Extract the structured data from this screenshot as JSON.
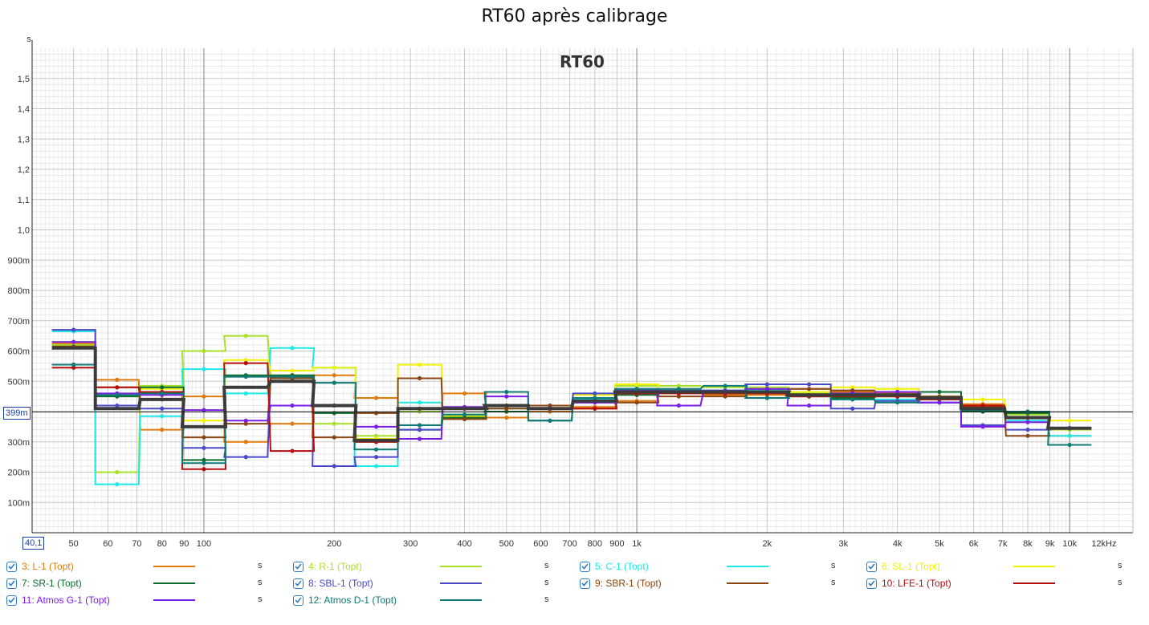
{
  "window": {
    "title": "RT60 après calibrage"
  },
  "cursor": {
    "freq_label": "40,1",
    "value_label": "399m",
    "value": 0.399
  },
  "chart_data": {
    "type": "line",
    "step": true,
    "title": "RT60 après calibrage",
    "watermark": "RT60",
    "yunit": "s",
    "xunit": "kHz",
    "xscale": "log",
    "xlim": [
      40.1,
      14000
    ],
    "ylim": [
      0,
      1.6
    ],
    "grid": true,
    "y_ticks": [
      {
        "v": 0.1,
        "l": "100m"
      },
      {
        "v": 0.2,
        "l": "200m"
      },
      {
        "v": 0.3,
        "l": "300m"
      },
      {
        "v": 0.4,
        "l": "400m"
      },
      {
        "v": 0.5,
        "l": "500m"
      },
      {
        "v": 0.6,
        "l": "600m"
      },
      {
        "v": 0.7,
        "l": "700m"
      },
      {
        "v": 0.8,
        "l": "800m"
      },
      {
        "v": 0.9,
        "l": "900m"
      },
      {
        "v": 1.0,
        "l": "1,0"
      },
      {
        "v": 1.1,
        "l": "1,1"
      },
      {
        "v": 1.2,
        "l": "1,2"
      },
      {
        "v": 1.3,
        "l": "1,3"
      },
      {
        "v": 1.4,
        "l": "1,4"
      },
      {
        "v": 1.5,
        "l": "1,5"
      }
    ],
    "x_ticks": [
      {
        "v": 50,
        "l": "50"
      },
      {
        "v": 60,
        "l": "60"
      },
      {
        "v": 70,
        "l": "70"
      },
      {
        "v": 80,
        "l": "80"
      },
      {
        "v": 90,
        "l": "90"
      },
      {
        "v": 100,
        "l": "100"
      },
      {
        "v": 200,
        "l": "200"
      },
      {
        "v": 300,
        "l": "300"
      },
      {
        "v": 400,
        "l": "400"
      },
      {
        "v": 500,
        "l": "500"
      },
      {
        "v": 600,
        "l": "600"
      },
      {
        "v": 700,
        "l": "700"
      },
      {
        "v": 800,
        "l": "800"
      },
      {
        "v": 900,
        "l": "900"
      },
      {
        "v": 1000,
        "l": "1k"
      },
      {
        "v": 2000,
        "l": "2k"
      },
      {
        "v": 3000,
        "l": "3k"
      },
      {
        "v": 4000,
        "l": "4k"
      },
      {
        "v": 5000,
        "l": "5k"
      },
      {
        "v": 6000,
        "l": "6k"
      },
      {
        "v": 7000,
        "l": "7k"
      },
      {
        "v": 8000,
        "l": "8k"
      },
      {
        "v": 9000,
        "l": "9k"
      },
      {
        "v": 10000,
        "l": "10k"
      },
      {
        "v": 12000,
        "l": "12kHz"
      }
    ],
    "bands": [
      50,
      63,
      80,
      100,
      125,
      160,
      200,
      250,
      315,
      400,
      500,
      630,
      800,
      1000,
      1250,
      1600,
      2000,
      2500,
      3150,
      4000,
      5000,
      6300,
      8000,
      10000
    ],
    "series": [
      {
        "name": "3: L-1 (Topt)",
        "color": "#e07b0e",
        "values": [
          0.625,
          0.505,
          0.34,
          0.45,
          0.3,
          0.36,
          0.52,
          0.445,
          0.355,
          0.46,
          0.38,
          0.4,
          0.415,
          0.435,
          0.465,
          0.455,
          0.455,
          0.475,
          0.465,
          0.46,
          0.44,
          0.425,
          0.4,
          0.32
        ]
      },
      {
        "name": "4: R-1 (Topt)",
        "color": "#a8e02a",
        "values": [
          0.62,
          0.2,
          0.485,
          0.6,
          0.65,
          0.52,
          0.36,
          0.32,
          0.4,
          0.39,
          0.4,
          0.41,
          0.445,
          0.485,
          0.485,
          0.48,
          0.48,
          0.46,
          0.46,
          0.45,
          0.45,
          0.41,
          0.39,
          0.34
        ]
      },
      {
        "name": "5: C-1 (Topt)",
        "color": "#1ee8e8",
        "values": [
          0.665,
          0.16,
          0.385,
          0.54,
          0.46,
          0.61,
          0.545,
          0.22,
          0.43,
          0.39,
          0.41,
          0.42,
          0.44,
          0.46,
          0.465,
          0.47,
          0.47,
          0.455,
          0.44,
          0.44,
          0.43,
          0.4,
          0.37,
          0.32
        ]
      },
      {
        "name": "6: SL-1 (Topt)",
        "color": "#f2f200",
        "values": [
          0.63,
          0.455,
          0.475,
          0.37,
          0.57,
          0.535,
          0.545,
          0.31,
          0.555,
          0.385,
          0.4,
          0.41,
          0.455,
          0.49,
          0.475,
          0.46,
          0.465,
          0.465,
          0.48,
          0.475,
          0.45,
          0.44,
          0.38,
          0.37
        ]
      },
      {
        "name": "7: SR-1 (Topt)",
        "color": "#0e6b2e",
        "values": [
          0.555,
          0.45,
          0.48,
          0.24,
          0.52,
          0.52,
          0.395,
          0.3,
          0.34,
          0.38,
          0.4,
          0.37,
          0.43,
          0.455,
          0.465,
          0.465,
          0.445,
          0.45,
          0.445,
          0.45,
          0.465,
          0.4,
          0.395,
          0.345
        ]
      },
      {
        "name": "8: SBL-1 (Topt)",
        "color": "#4a4ac8",
        "values": [
          0.67,
          0.42,
          0.41,
          0.28,
          0.25,
          0.515,
          0.22,
          0.25,
          0.34,
          0.41,
          0.42,
          0.42,
          0.46,
          0.475,
          0.47,
          0.47,
          0.49,
          0.49,
          0.41,
          0.435,
          0.43,
          0.355,
          0.34,
          0.345
        ]
      },
      {
        "name": "9: SBR-1 (Topt)",
        "color": "#8b4510",
        "values": [
          0.615,
          0.48,
          0.44,
          0.315,
          0.36,
          0.51,
          0.315,
          0.395,
          0.51,
          0.375,
          0.41,
          0.42,
          0.41,
          0.43,
          0.45,
          0.45,
          0.475,
          0.475,
          0.47,
          0.465,
          0.45,
          0.415,
          0.32,
          0.345
        ]
      },
      {
        "name": "10: LFE-1 (Topt)",
        "color": "#b80e0e",
        "values": [
          0.545,
          0.48,
          0.465,
          0.21,
          0.56,
          0.27,
          0.42,
          0.3,
          0.41,
          0.41,
          0.42,
          0.41,
          0.41,
          0.46,
          0.46,
          0.46,
          0.46,
          0.45,
          0.45,
          0.45,
          0.44,
          0.42,
          0.38,
          0.345
        ]
      },
      {
        "name": "11: Atmos G-1 (Topt)",
        "color": "#7a1ee6",
        "values": [
          0.63,
          0.46,
          0.455,
          0.405,
          0.37,
          0.42,
          0.42,
          0.35,
          0.31,
          0.415,
          0.45,
          0.41,
          0.43,
          0.47,
          0.42,
          0.465,
          0.475,
          0.42,
          0.46,
          0.465,
          0.43,
          0.35,
          0.365,
          0.345
        ]
      },
      {
        "name": "12: Atmos D-1 (Topt)",
        "color": "#0e7a76",
        "values": [
          0.555,
          0.455,
          0.46,
          0.23,
          0.515,
          0.515,
          0.495,
          0.275,
          0.355,
          0.39,
          0.465,
          0.37,
          0.445,
          0.475,
          0.475,
          0.485,
          0.445,
          0.455,
          0.44,
          0.43,
          0.445,
          0.405,
          0.4,
          0.29
        ]
      },
      {
        "name": "",
        "color": "#3b3b3b",
        "values": [
          0.61,
          0.41,
          0.44,
          0.35,
          0.48,
          0.5,
          0.42,
          0.305,
          0.41,
          0.41,
          0.42,
          0.41,
          0.435,
          0.465,
          0.465,
          0.465,
          0.465,
          0.455,
          0.455,
          0.455,
          0.445,
          0.41,
          0.38,
          0.345
        ]
      }
    ]
  },
  "legend": {
    "unit_label": "s",
    "items": [
      {
        "label": "3: L-1 (Topt)",
        "color": "#e07b0e",
        "checked": true
      },
      {
        "label": "4: R-1 (Topt)",
        "color": "#a8e02a",
        "checked": true
      },
      {
        "label": "5: C-1 (Topt)",
        "color": "#1ee8e8",
        "checked": true
      },
      {
        "label": "6: SL-1 (Topt)",
        "color": "#f2f200",
        "checked": true
      },
      {
        "label": "7: SR-1 (Topt)",
        "color": "#0e6b2e",
        "checked": true
      },
      {
        "label": "8: SBL-1 (Topt)",
        "color": "#4a4ac8",
        "checked": true
      },
      {
        "label": "9: SBR-1 (Topt)",
        "color": "#8b4510",
        "checked": true
      },
      {
        "label": "10: LFE-1 (Topt)",
        "color": "#b80e0e",
        "checked": true
      },
      {
        "label": "11: Atmos G-1 (Topt)",
        "color": "#7a1ee6",
        "checked": true
      },
      {
        "label": "12: Atmos D-1 (Topt)",
        "color": "#0e7a76",
        "checked": true
      }
    ]
  }
}
